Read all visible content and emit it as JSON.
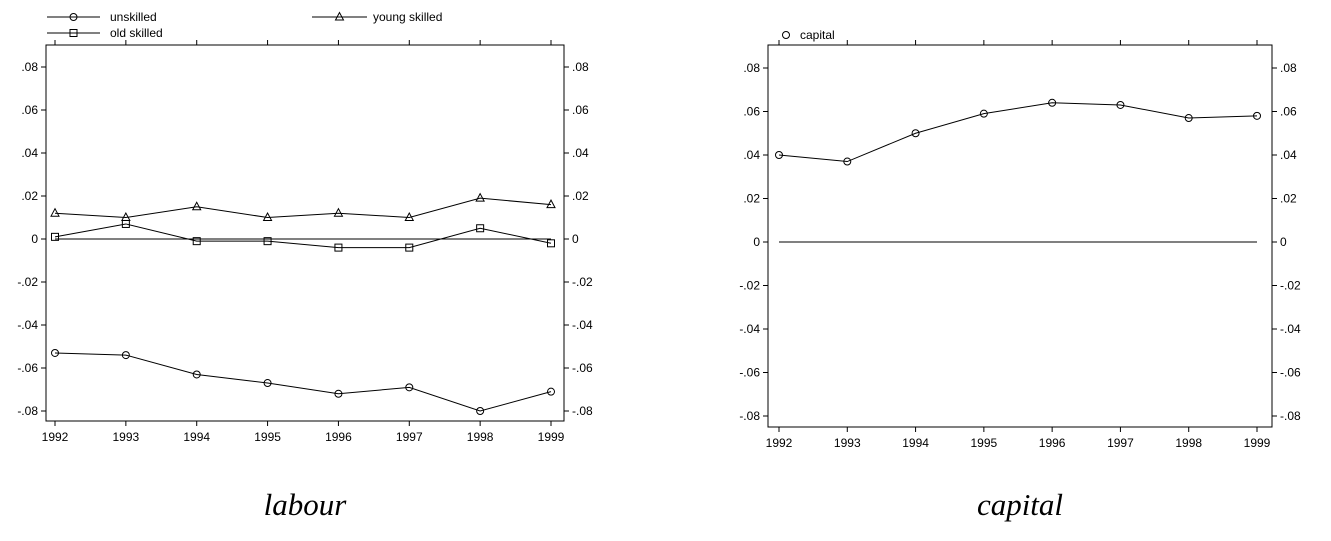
{
  "chart_data": [
    {
      "type": "line",
      "title": "labour",
      "x": [
        1992,
        1993,
        1994,
        1995,
        1996,
        1997,
        1998,
        1999
      ],
      "ylim": [
        -0.085,
        0.085
      ],
      "yticks": [
        ".08",
        ".06",
        ".04",
        ".02",
        "0",
        "-.02",
        "-.04",
        "-.06",
        "-.08"
      ],
      "ytick_values": [
        0.08,
        0.06,
        0.04,
        0.02,
        0,
        -0.02,
        -0.04,
        -0.06,
        -0.08
      ],
      "reference_line": 0,
      "grid": false,
      "legend_position": "top",
      "series": [
        {
          "name": "unskilled",
          "marker": "circle",
          "values": [
            -0.053,
            -0.054,
            -0.063,
            -0.067,
            -0.072,
            -0.069,
            -0.08,
            -0.071
          ]
        },
        {
          "name": "young skilled",
          "marker": "triangle",
          "values": [
            0.012,
            0.01,
            0.015,
            0.01,
            0.012,
            0.01,
            0.019,
            0.016
          ]
        },
        {
          "name": "old skilled",
          "marker": "square",
          "values": [
            0.001,
            0.007,
            -0.001,
            -0.001,
            -0.004,
            -0.004,
            0.005,
            -0.002
          ]
        }
      ]
    },
    {
      "type": "line",
      "title": "capital",
      "x": [
        1992,
        1993,
        1994,
        1995,
        1996,
        1997,
        1998,
        1999
      ],
      "ylim": [
        -0.085,
        0.085
      ],
      "yticks": [
        ".08",
        ".06",
        ".04",
        ".02",
        "0",
        "-.02",
        "-.04",
        "-.06",
        "-.08"
      ],
      "ytick_values": [
        0.08,
        0.06,
        0.04,
        0.02,
        0,
        -0.02,
        -0.04,
        -0.06,
        -0.08
      ],
      "reference_line": 0,
      "grid": false,
      "legend_position": "top-left",
      "series": [
        {
          "name": "capital",
          "marker": "circle",
          "values": [
            0.04,
            0.037,
            0.05,
            0.059,
            0.064,
            0.063,
            0.057,
            0.058
          ]
        }
      ]
    }
  ],
  "colors": {
    "line": "#000000",
    "background": "#ffffff"
  }
}
